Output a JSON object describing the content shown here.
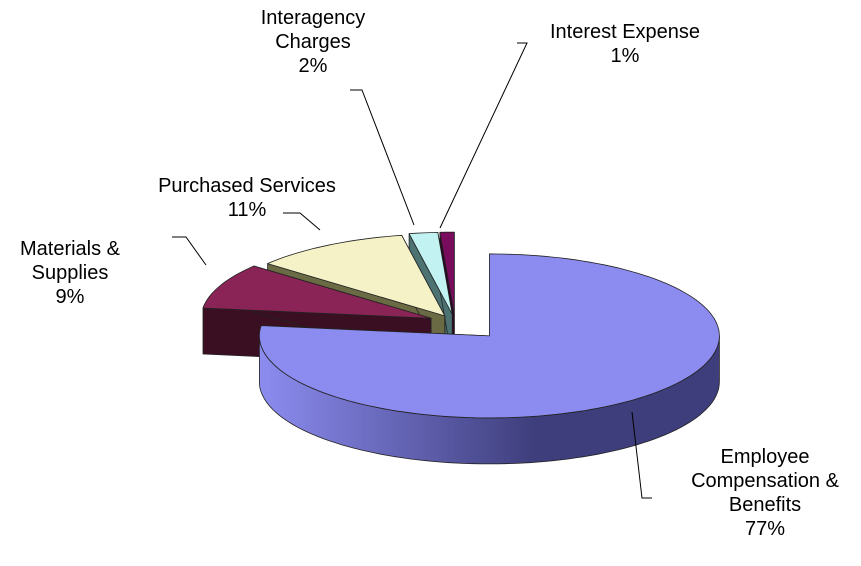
{
  "chart_data": {
    "type": "pie",
    "categories": [
      "Employee Compensation & Benefits",
      "Materials & Supplies",
      "Purchased Services",
      "Interagency Charges",
      "Interest Expense"
    ],
    "values": [
      77,
      9,
      11,
      2,
      1
    ],
    "value_labels": [
      "77%",
      "9%",
      "11%",
      "2%",
      "1%"
    ],
    "colors": [
      "#8c8cf0",
      "#8a2456",
      "#f4f2c6",
      "#c2f2f2",
      "#7a0c5e"
    ],
    "side_colors": [
      "#3e3e7c",
      "#3a0f22",
      "#6a6a44",
      "#4c7272",
      "#2e0024"
    ]
  }
}
